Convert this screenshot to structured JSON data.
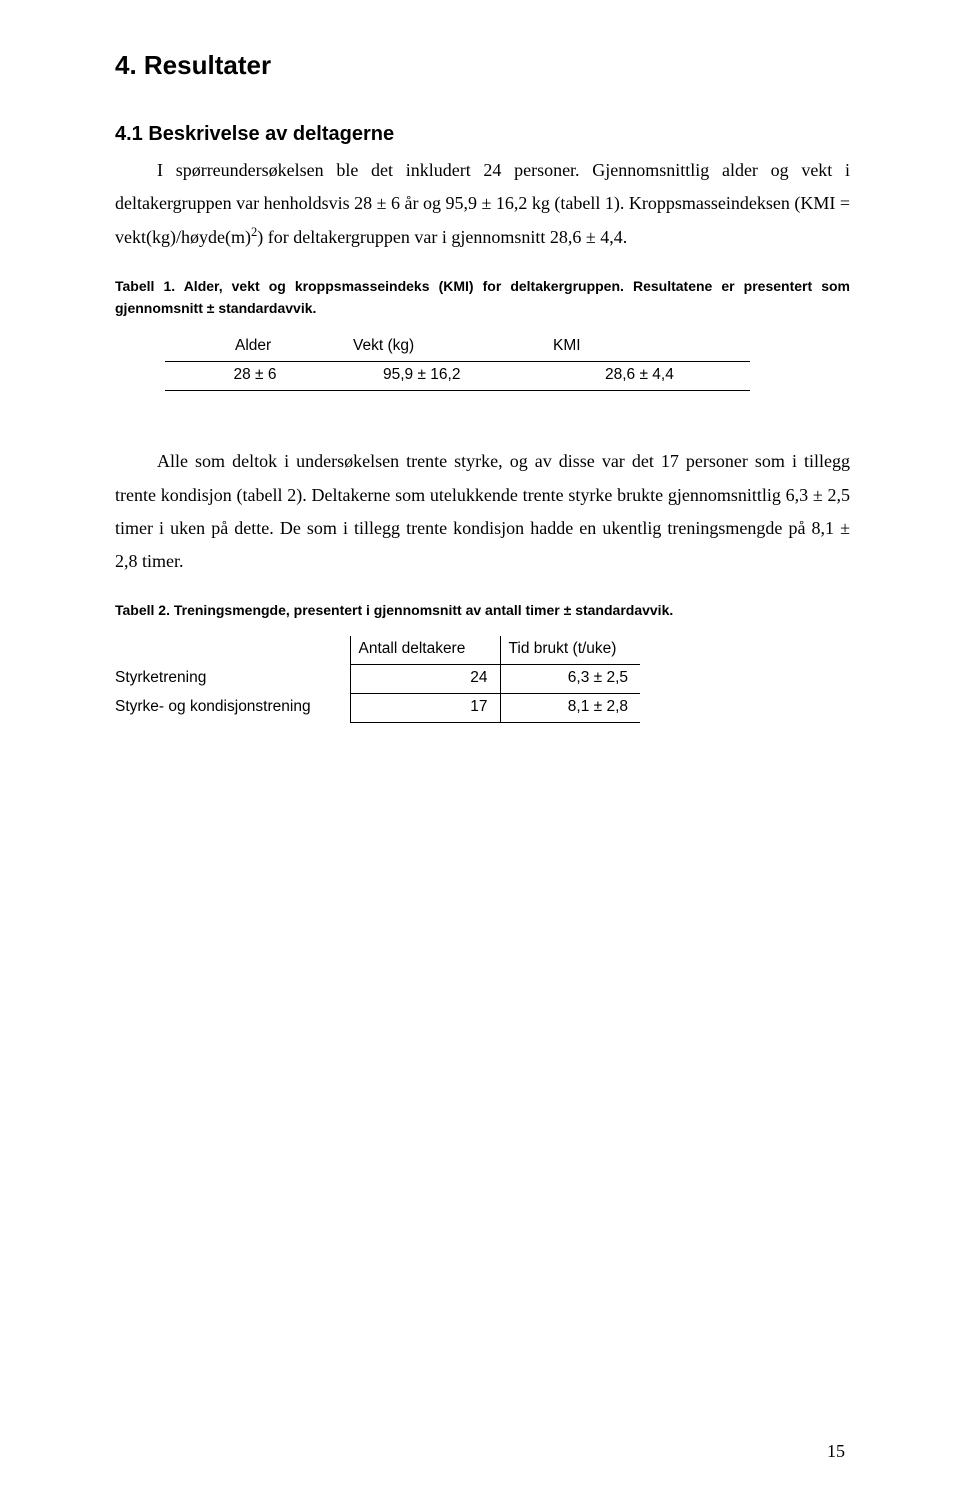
{
  "heading1": "4. Resultater",
  "heading2": "4.1 Beskrivelse av deltagerne",
  "para1_pre": "I spørreundersøkelsen ble det inkludert 24 personer. Gjennomsnittlig alder og vekt i deltakergruppen var henholdsvis 28 ± 6 år og 95,9 ± 16,2 kg (tabell 1). Kroppsmasseindeksen (KMI = vekt(kg)/høyde(m)",
  "para1_sup": "2",
  "para1_post": ") for deltakergruppen var i gjennomsnitt 28,6 ± 4,4.",
  "caption1": "Tabell 1. Alder, vekt og kroppsmasseindeks (KMI) for deltakergruppen. Resultatene er presentert som gjennomsnitt ± standardavvik.",
  "table1": {
    "headers": [
      "Alder",
      "Vekt (kg)",
      "KMI"
    ],
    "row": [
      "28 ± 6",
      "95,9  ± 16,2",
      "28,6 ± 4,4"
    ]
  },
  "para2": "Alle som deltok i undersøkelsen trente styrke, og av disse var det 17 personer som i tillegg trente kondisjon (tabell 2). Deltakerne som utelukkende trente styrke brukte gjennomsnittlig 6,3 ± 2,5 timer i uken på dette. De som i tillegg trente kondisjon hadde en ukentlig treningsmengde på 8,1 ± 2,8 timer.",
  "caption2": "Tabell 2. Treningsmengde, presentert i gjennomsnitt av antall timer ± standardavvik.",
  "table2": {
    "headers": [
      "",
      "Antall deltakere",
      "Tid brukt (t/uke)"
    ],
    "rows": [
      [
        "Styrketrening",
        "24",
        "6,3 ± 2,5"
      ],
      [
        "Styrke- og kondisjonstrening",
        "17",
        "8,1 ± 2,8"
      ]
    ]
  },
  "page_number": "15",
  "colors": {
    "text": "#000000",
    "background": "#ffffff",
    "border": "#000000"
  }
}
